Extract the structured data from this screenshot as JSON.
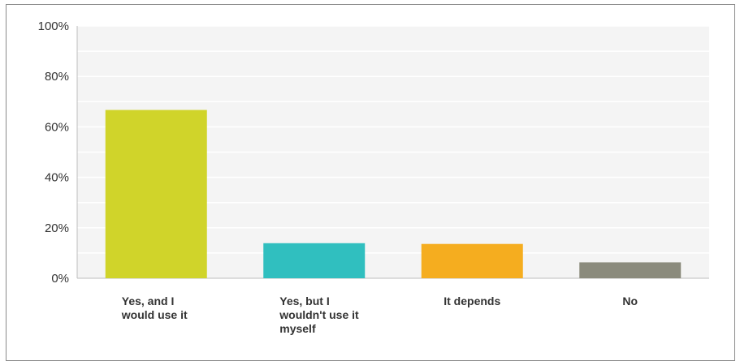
{
  "chart_data": {
    "type": "bar",
    "categories": [
      "Yes, and I would use it",
      "Yes, but I wouldn't use it myself",
      "It depends",
      "No"
    ],
    "category_lines": [
      [
        "Yes, and I",
        "would use it"
      ],
      [
        "Yes, but I",
        "wouldn't use it",
        "myself"
      ],
      [
        "It depends"
      ],
      [
        "No"
      ]
    ],
    "values": [
      66.7,
      13.9,
      13.6,
      6.3
    ],
    "colors": [
      "#d0d42a",
      "#30bfbf",
      "#f5ad1f",
      "#8b8b7d"
    ],
    "yticks": [
      "0%",
      "20%",
      "40%",
      "60%",
      "80%",
      "100%"
    ],
    "ylim": [
      0,
      100
    ],
    "grid": true,
    "plot_background": "#f4f4f4"
  }
}
